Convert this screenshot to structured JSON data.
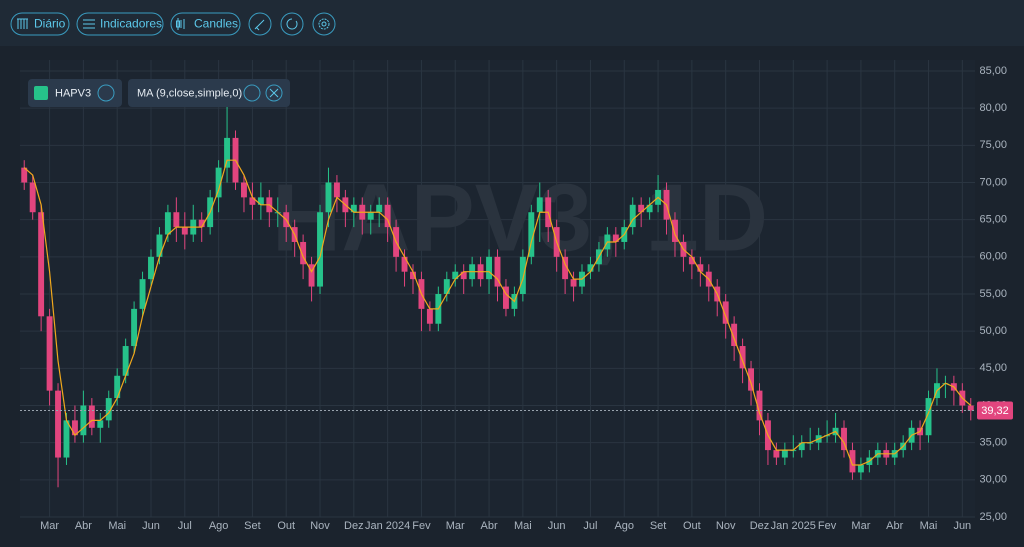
{
  "toolbar": {
    "buttons": [
      "Diário",
      "Indicadores",
      "Candles"
    ]
  },
  "chart_data": {
    "type": "candlestick",
    "watermark": "HAPV3, 1D",
    "categories": [
      null,
      null,
      null,
      "Mar",
      null,
      null,
      null,
      "Abr",
      null,
      null,
      null,
      "Mai",
      null,
      null,
      null,
      "Jun",
      null,
      null,
      null,
      "Jul",
      null,
      null,
      null,
      "Ago",
      null,
      null,
      null,
      "Set",
      null,
      null,
      null,
      "Out",
      null,
      null,
      null,
      "Nov",
      null,
      null,
      null,
      "Dez",
      null,
      null,
      null,
      "Jan 2024",
      null,
      null,
      null,
      "Fev",
      null,
      null,
      null,
      "Mar",
      null,
      null,
      null,
      "Abr",
      null,
      null,
      null,
      "Mai",
      null,
      null,
      null,
      "Jun",
      null,
      null,
      null,
      "Jul",
      null,
      null,
      null,
      "Ago",
      null,
      null,
      null,
      "Set",
      null,
      null,
      null,
      "Out",
      null,
      null,
      null,
      "Nov",
      null,
      null,
      null,
      "Dez",
      null,
      null,
      null,
      "Jan 2025",
      null,
      null,
      null,
      "Fev",
      null,
      null,
      null,
      "Mar",
      null,
      null,
      null,
      "Abr",
      null,
      null,
      null,
      "Mai",
      null,
      null,
      null,
      "Jun",
      null
    ],
    "series": [
      {
        "name": "HAPV3",
        "up_color": "#26c28a",
        "down_color": "#e2457e",
        "open": [
          72,
          70,
          66,
          52,
          42,
          33,
          38,
          36,
          40,
          37,
          38,
          41,
          44,
          48,
          53,
          57,
          60,
          63,
          66,
          64,
          63,
          65,
          64,
          68,
          72,
          76,
          70,
          68,
          67,
          68,
          66,
          66,
          64,
          62,
          59,
          56,
          66,
          70,
          68,
          66,
          67,
          65,
          66,
          67,
          64,
          60,
          58,
          57,
          53,
          51,
          55,
          57,
          58,
          57,
          59,
          57,
          60,
          56,
          53,
          55,
          60,
          66,
          68,
          64,
          60,
          57,
          56,
          58,
          59,
          61,
          63,
          62,
          64,
          67,
          66,
          67,
          69,
          65,
          62,
          60,
          59,
          58,
          56,
          54,
          51,
          48,
          45,
          42,
          38,
          34,
          33,
          34,
          34,
          35,
          35,
          36,
          36,
          37,
          34,
          31,
          32,
          33,
          34,
          33,
          34,
          35,
          37,
          36,
          41,
          43,
          43,
          42,
          40
        ],
        "high": [
          73,
          71,
          67,
          53,
          43,
          39,
          40,
          42,
          41,
          39,
          42,
          45,
          49,
          54,
          58,
          61,
          64,
          67,
          68,
          66,
          67,
          66,
          69,
          73,
          81,
          77,
          71,
          70,
          70,
          69,
          68,
          67,
          65,
          63,
          60,
          67,
          72,
          71,
          69,
          68,
          68,
          67,
          68,
          68,
          65,
          61,
          59,
          58,
          54,
          56,
          58,
          59,
          59,
          60,
          60,
          61,
          61,
          57,
          56,
          61,
          67,
          70,
          69,
          65,
          61,
          58,
          59,
          60,
          62,
          64,
          64,
          65,
          68,
          68,
          68,
          71,
          70,
          66,
          63,
          61,
          60,
          59,
          57,
          55,
          52,
          49,
          46,
          43,
          39,
          35,
          35,
          36,
          36,
          37,
          37,
          38,
          39,
          38,
          35,
          33,
          34,
          35,
          35,
          35,
          36,
          38,
          38,
          42,
          45,
          44,
          44,
          43,
          41
        ],
        "low": [
          69,
          65,
          50,
          40,
          29,
          32,
          35,
          35,
          36,
          35,
          37,
          40,
          43,
          47,
          52,
          56,
          59,
          62,
          62,
          61,
          62,
          62,
          63,
          66,
          70,
          69,
          66,
          65,
          65,
          64,
          64,
          62,
          60,
          57,
          54,
          55,
          64,
          66,
          64,
          64,
          63,
          63,
          64,
          62,
          58,
          56,
          55,
          50,
          50,
          50,
          54,
          56,
          55,
          56,
          56,
          55,
          54,
          52,
          52,
          54,
          59,
          62,
          62,
          58,
          55,
          54,
          55,
          57,
          58,
          60,
          60,
          61,
          63,
          64,
          65,
          66,
          63,
          60,
          58,
          57,
          56,
          54,
          52,
          49,
          46,
          43,
          40,
          36,
          32,
          32,
          32,
          33,
          33,
          34,
          34,
          35,
          35,
          33,
          30,
          30,
          31,
          32,
          32,
          32,
          33,
          34,
          34,
          35,
          40,
          41,
          40,
          39,
          38
        ],
        "close": [
          70,
          66,
          52,
          42,
          33,
          38,
          36,
          40,
          37,
          38,
          41,
          44,
          48,
          53,
          57,
          60,
          63,
          66,
          64,
          63,
          65,
          64,
          68,
          72,
          76,
          70,
          68,
          67,
          68,
          66,
          66,
          64,
          62,
          59,
          56,
          66,
          70,
          68,
          66,
          67,
          65,
          66,
          67,
          64,
          60,
          58,
          57,
          53,
          51,
          55,
          57,
          58,
          57,
          59,
          57,
          60,
          56,
          53,
          55,
          60,
          66,
          68,
          64,
          60,
          57,
          56,
          58,
          59,
          61,
          63,
          62,
          64,
          67,
          66,
          67,
          69,
          65,
          62,
          60,
          59,
          58,
          56,
          54,
          51,
          48,
          45,
          42,
          38,
          34,
          33,
          34,
          34,
          35,
          35,
          36,
          36,
          37,
          34,
          31,
          32,
          33,
          34,
          33,
          34,
          35,
          37,
          36,
          41,
          43,
          43,
          42,
          40,
          39.32
        ]
      },
      {
        "name": "MA (9,close,simple,0)",
        "type": "line",
        "color": "#f0a81c",
        "values": [
          72,
          71,
          67,
          58,
          46,
          38,
          36,
          37,
          38,
          38,
          39,
          41,
          44,
          47,
          52,
          56,
          60,
          63,
          64,
          64,
          64,
          64,
          66,
          69,
          73,
          73,
          71,
          68,
          67,
          67,
          66,
          65,
          63,
          60,
          58,
          60,
          65,
          68,
          67,
          66,
          66,
          66,
          66,
          65,
          62,
          60,
          58,
          55,
          53,
          53,
          55,
          57,
          58,
          58,
          58,
          58,
          57,
          55,
          54,
          57,
          62,
          66,
          66,
          62,
          59,
          57,
          57,
          58,
          60,
          62,
          62,
          63,
          65,
          66,
          67,
          68,
          67,
          63,
          61,
          60,
          58,
          57,
          55,
          52,
          49,
          46,
          43,
          39,
          36,
          34,
          34,
          34,
          35,
          35,
          35.5,
          36,
          36.5,
          35,
          32,
          32,
          32.5,
          33.5,
          33.5,
          33.5,
          34.5,
          36,
          36.5,
          39,
          42,
          43,
          42.5,
          41,
          40
        ]
      }
    ],
    "price_tag": {
      "value": 39.32,
      "label": "39,32",
      "color": "#e2457e"
    },
    "ylim": [
      25,
      85
    ],
    "yticks": [
      {
        "value": 25,
        "label": "25,00"
      },
      {
        "value": 30,
        "label": "30,00"
      },
      {
        "value": 35,
        "label": "35,00"
      },
      {
        "value": 40,
        "label": "40,00"
      },
      {
        "value": 45,
        "label": "45,00"
      },
      {
        "value": 50,
        "label": "50,00"
      },
      {
        "value": 55,
        "label": "55,00"
      },
      {
        "value": 60,
        "label": "60,00"
      },
      {
        "value": 65,
        "label": "65,00"
      },
      {
        "value": 70,
        "label": "70,00"
      },
      {
        "value": 75,
        "label": "75,00"
      },
      {
        "value": 80,
        "label": "80,00"
      },
      {
        "value": 85,
        "label": "85,00"
      }
    ],
    "grid": true
  }
}
